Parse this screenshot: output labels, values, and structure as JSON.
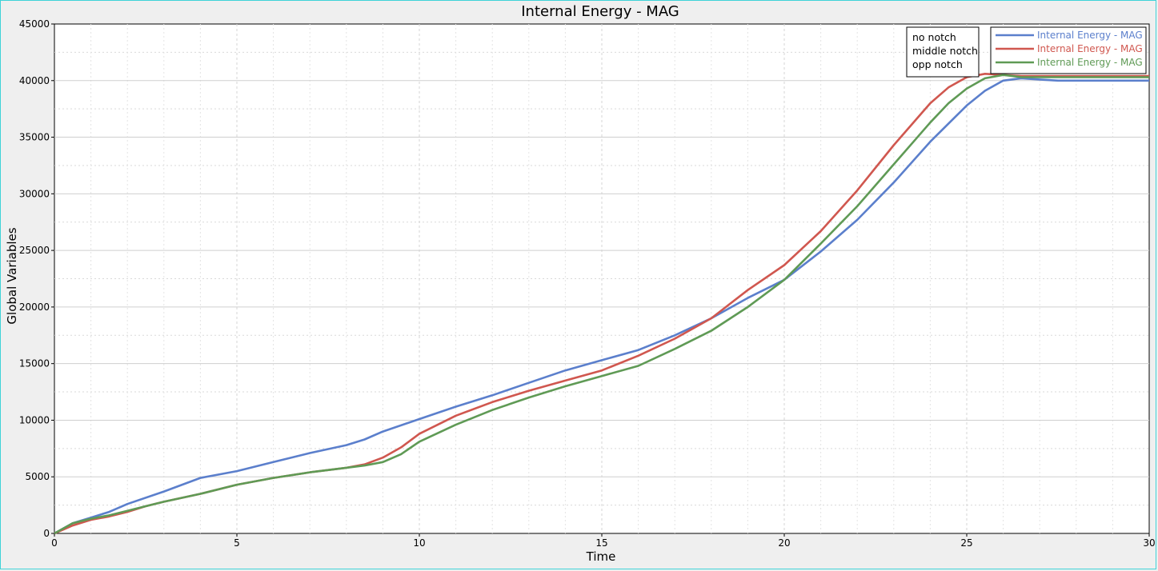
{
  "chart_data": {
    "type": "line",
    "title": "Internal Energy - MAG",
    "xlabel": "Time",
    "ylabel": "Global Variables",
    "xlim": [
      0,
      30
    ],
    "ylim": [
      0,
      45000
    ],
    "x_ticks": [
      "0",
      "5",
      "10",
      "15",
      "20",
      "25",
      "30"
    ],
    "y_ticks": [
      "0",
      "5000",
      "10000",
      "15000",
      "20000",
      "25000",
      "30000",
      "35000",
      "40000",
      "45000"
    ],
    "grid": true,
    "legend_position": "top-right",
    "annotation_lines": [
      "no  notch",
      "middle notch",
      "opp notch"
    ],
    "series": [
      {
        "name": "Internal Energy - MAG",
        "color": "#5b7fcc",
        "points": [
          [
            0,
            0
          ],
          [
            0.5,
            900
          ],
          [
            1,
            1400
          ],
          [
            1.5,
            1900
          ],
          [
            2,
            2600
          ],
          [
            3,
            3700
          ],
          [
            4,
            4900
          ],
          [
            5,
            5500
          ],
          [
            6,
            6300
          ],
          [
            7,
            7100
          ],
          [
            8,
            7800
          ],
          [
            8.5,
            8300
          ],
          [
            9,
            9000
          ],
          [
            10,
            10100
          ],
          [
            11,
            11200
          ],
          [
            12,
            12200
          ],
          [
            13,
            13300
          ],
          [
            14,
            14400
          ],
          [
            15,
            15300
          ],
          [
            16,
            16200
          ],
          [
            17,
            17500
          ],
          [
            18,
            19000
          ],
          [
            19,
            20800
          ],
          [
            20,
            22400
          ],
          [
            21,
            24900
          ],
          [
            22,
            27700
          ],
          [
            23,
            31000
          ],
          [
            24,
            34600
          ],
          [
            25,
            37800
          ],
          [
            25.5,
            39100
          ],
          [
            26,
            40000
          ],
          [
            26.5,
            40200
          ],
          [
            27,
            40100
          ],
          [
            27.5,
            40000
          ],
          [
            30,
            40000
          ]
        ]
      },
      {
        "name": "Internal Energy - MAG",
        "color": "#d0574f",
        "points": [
          [
            0,
            0
          ],
          [
            0.5,
            700
          ],
          [
            1,
            1200
          ],
          [
            1.5,
            1500
          ],
          [
            2,
            1900
          ],
          [
            2.5,
            2400
          ],
          [
            3,
            2800
          ],
          [
            4,
            3500
          ],
          [
            5,
            4300
          ],
          [
            6,
            4900
          ],
          [
            7,
            5400
          ],
          [
            8,
            5800
          ],
          [
            8.5,
            6100
          ],
          [
            9,
            6700
          ],
          [
            9.5,
            7600
          ],
          [
            10,
            8800
          ],
          [
            11,
            10400
          ],
          [
            12,
            11600
          ],
          [
            13,
            12600
          ],
          [
            14,
            13500
          ],
          [
            15,
            14400
          ],
          [
            16,
            15700
          ],
          [
            17,
            17200
          ],
          [
            18,
            19000
          ],
          [
            19,
            21500
          ],
          [
            20,
            23700
          ],
          [
            21,
            26700
          ],
          [
            22,
            30300
          ],
          [
            23,
            34300
          ],
          [
            24,
            38000
          ],
          [
            24.5,
            39400
          ],
          [
            25,
            40300
          ],
          [
            25.5,
            40600
          ],
          [
            26,
            40500
          ],
          [
            26.5,
            40400
          ],
          [
            30,
            40400
          ]
        ]
      },
      {
        "name": "Internal Energy - MAG",
        "color": "#5f9a55",
        "points": [
          [
            0,
            0
          ],
          [
            0.5,
            900
          ],
          [
            1,
            1300
          ],
          [
            1.5,
            1600
          ],
          [
            2,
            2000
          ],
          [
            2.5,
            2400
          ],
          [
            3,
            2800
          ],
          [
            4,
            3500
          ],
          [
            5,
            4300
          ],
          [
            6,
            4900
          ],
          [
            7,
            5400
          ],
          [
            8,
            5800
          ],
          [
            8.5,
            6000
          ],
          [
            9,
            6300
          ],
          [
            9.5,
            7000
          ],
          [
            10,
            8100
          ],
          [
            11,
            9600
          ],
          [
            12,
            10900
          ],
          [
            13,
            12000
          ],
          [
            14,
            13000
          ],
          [
            15,
            13900
          ],
          [
            16,
            14800
          ],
          [
            17,
            16300
          ],
          [
            18,
            17900
          ],
          [
            19,
            20000
          ],
          [
            20,
            22400
          ],
          [
            21,
            25600
          ],
          [
            22,
            28900
          ],
          [
            23,
            32600
          ],
          [
            24,
            36300
          ],
          [
            24.5,
            38000
          ],
          [
            25,
            39300
          ],
          [
            25.5,
            40200
          ],
          [
            26,
            40500
          ],
          [
            26.5,
            40300
          ],
          [
            30,
            40300
          ]
        ]
      }
    ]
  }
}
